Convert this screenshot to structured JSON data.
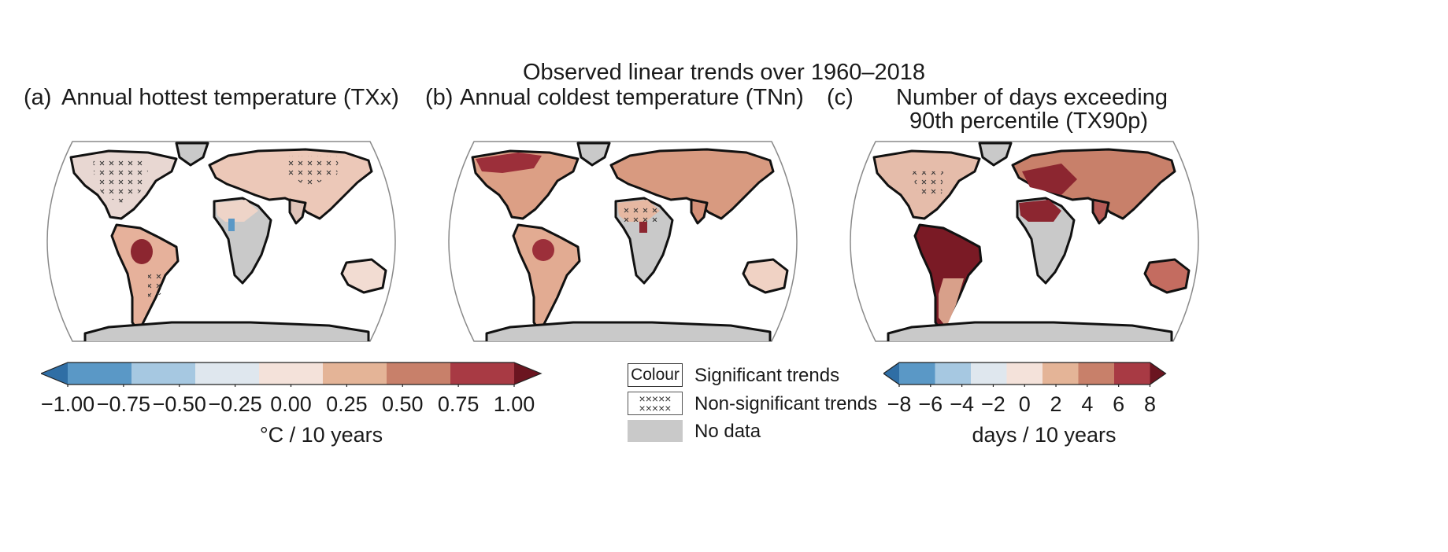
{
  "figure": {
    "title": "Observed linear trends over 1960–2018"
  },
  "panels": [
    {
      "label": "(a)",
      "title": "Annual hottest temperature (TXx)"
    },
    {
      "label": "(b)",
      "title": "Annual coldest temperature (TNn)"
    },
    {
      "label": "(c)",
      "title_line1": "Number of days exceeding",
      "title_line2": "90th percentile (TX90p)"
    }
  ],
  "colorbar_temp": {
    "unit": "°C / 10 years",
    "ticks": [
      "−1.00",
      "−0.75",
      "−0.50",
      "−0.25",
      "0.00",
      "0.25",
      "0.50",
      "0.75",
      "1.00"
    ],
    "colors": [
      "#2f6ea5",
      "#5a98c6",
      "#a6c8e1",
      "#dfe7ee",
      "#f4e2da",
      "#e4b497",
      "#c8806a",
      "#a83a44",
      "#6b1520"
    ]
  },
  "colorbar_days": {
    "unit": "days / 10 years",
    "ticks": [
      "−8",
      "−6",
      "−4",
      "−2",
      "0",
      "2",
      "4",
      "6",
      "8"
    ],
    "colors": [
      "#2f6ea5",
      "#5a98c6",
      "#a6c8e1",
      "#dfe7ee",
      "#f4e2da",
      "#e4b497",
      "#c8806a",
      "#a83a44",
      "#6b1520"
    ]
  },
  "legend": {
    "colour_box": "Colour",
    "significant": "Significant trends",
    "non_significant": "Non-significant trends",
    "no_data": "No data",
    "hatch_symbol": "×××××"
  },
  "colors": {
    "no_data": "#c9c9c9",
    "coast": "#111111",
    "frame": "#8a8a8a"
  }
}
